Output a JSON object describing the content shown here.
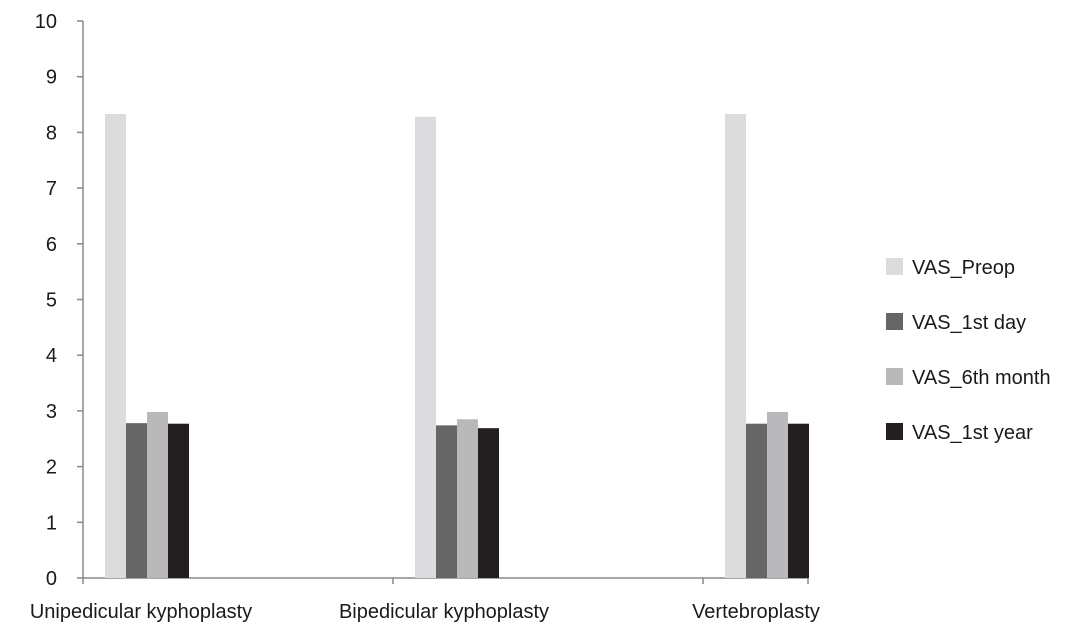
{
  "chart_data": {
    "type": "bar",
    "title": "",
    "xlabel": "",
    "ylabel": "",
    "ylim": [
      0,
      10
    ],
    "yticks": [
      0,
      1,
      2,
      3,
      4,
      5,
      6,
      7,
      8,
      9,
      10
    ],
    "grid": false,
    "legend_position": "right",
    "categories": [
      "Unipedicular kyphoplasty",
      "Bipedicular kyphoplasty",
      "Vertebroplasty"
    ],
    "series": [
      {
        "name": "VAS_Preop",
        "color": "#dcdcde",
        "values": [
          8.33,
          8.28,
          8.33
        ]
      },
      {
        "name": "VAS_1st day",
        "color": "#666666",
        "values": [
          2.78,
          2.74,
          2.77
        ]
      },
      {
        "name": "VAS_6th month",
        "color": "#b9b9bc",
        "values": [
          2.98,
          2.85,
          2.98
        ]
      },
      {
        "name": "VAS_1st year",
        "color": "#231f20",
        "values": [
          2.77,
          2.69,
          2.77
        ]
      }
    ]
  }
}
